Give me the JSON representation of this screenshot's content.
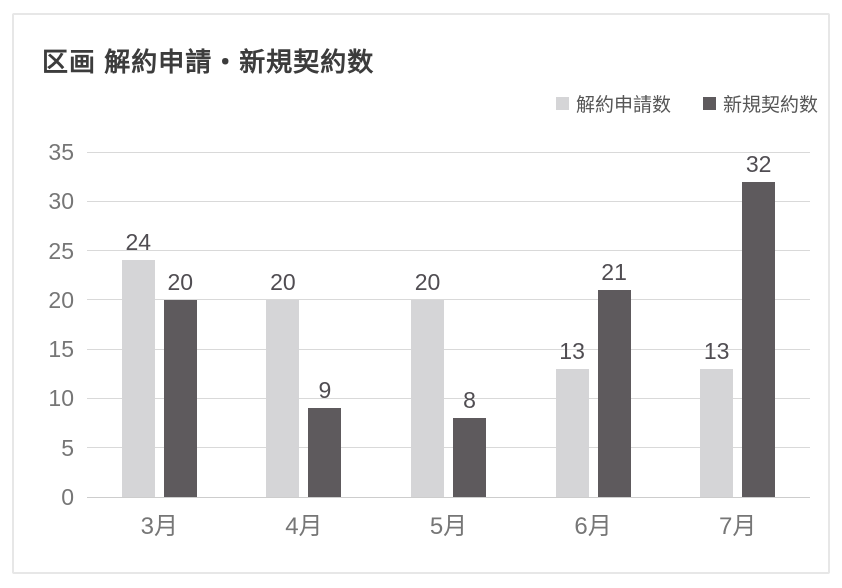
{
  "title": "区画 解約申請・新規契約数",
  "legend": {
    "items": [
      {
        "label": "解約申請数",
        "color": "#d5d5d7"
      },
      {
        "label": "新規契約数",
        "color": "#5e5a5d"
      }
    ]
  },
  "chart_data": {
    "type": "bar",
    "title": "区画 解約申請・新規契約数",
    "categories": [
      "3月",
      "4月",
      "5月",
      "6月",
      "7月"
    ],
    "series": [
      {
        "name": "解約申請数",
        "color": "#d5d5d7",
        "values": [
          24,
          20,
          20,
          13,
          13
        ]
      },
      {
        "name": "新規契約数",
        "color": "#5e5a5d",
        "values": [
          20,
          9,
          8,
          21,
          32
        ]
      }
    ],
    "xlabel": "",
    "ylabel": "",
    "ylim": [
      0,
      35
    ],
    "ytick_step": 5,
    "grid": true,
    "legend_position": "top-right",
    "data_labels": true
  },
  "colors": {
    "grid": "#d9d9d9",
    "axis_line": "#cdcdcd",
    "tick_text": "#767676",
    "data_label_text": "#504d52",
    "title_text": "#3c3c3c",
    "legend_text": "#565656",
    "card_border": "#e7e7e7",
    "background": "#ffffff"
  }
}
